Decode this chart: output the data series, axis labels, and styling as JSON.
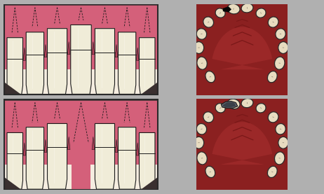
{
  "bg_color": "#b0b0b0",
  "gum_color": "#d4607a",
  "gum_dark": "#b8405a",
  "gum_light": "#e07090",
  "tooth_color": "#f0ecd8",
  "tooth_outline": "#1a1a1a",
  "tooth_shadow": "#c8c4a8",
  "root_dash_color": "#1a1a1a",
  "panel_bg": "#f5ede0",
  "panel_border": "#2a2a2a",
  "arch_bg": "#8b2020",
  "arch_palate": "#a03030",
  "arch_tooth_color": "#e8dcc0",
  "arch_tooth_outline": "#2a2a2a",
  "gap_color": "#0a0a0a",
  "bridge_color": "#606870",
  "bridge_dark": "#3a4048"
}
